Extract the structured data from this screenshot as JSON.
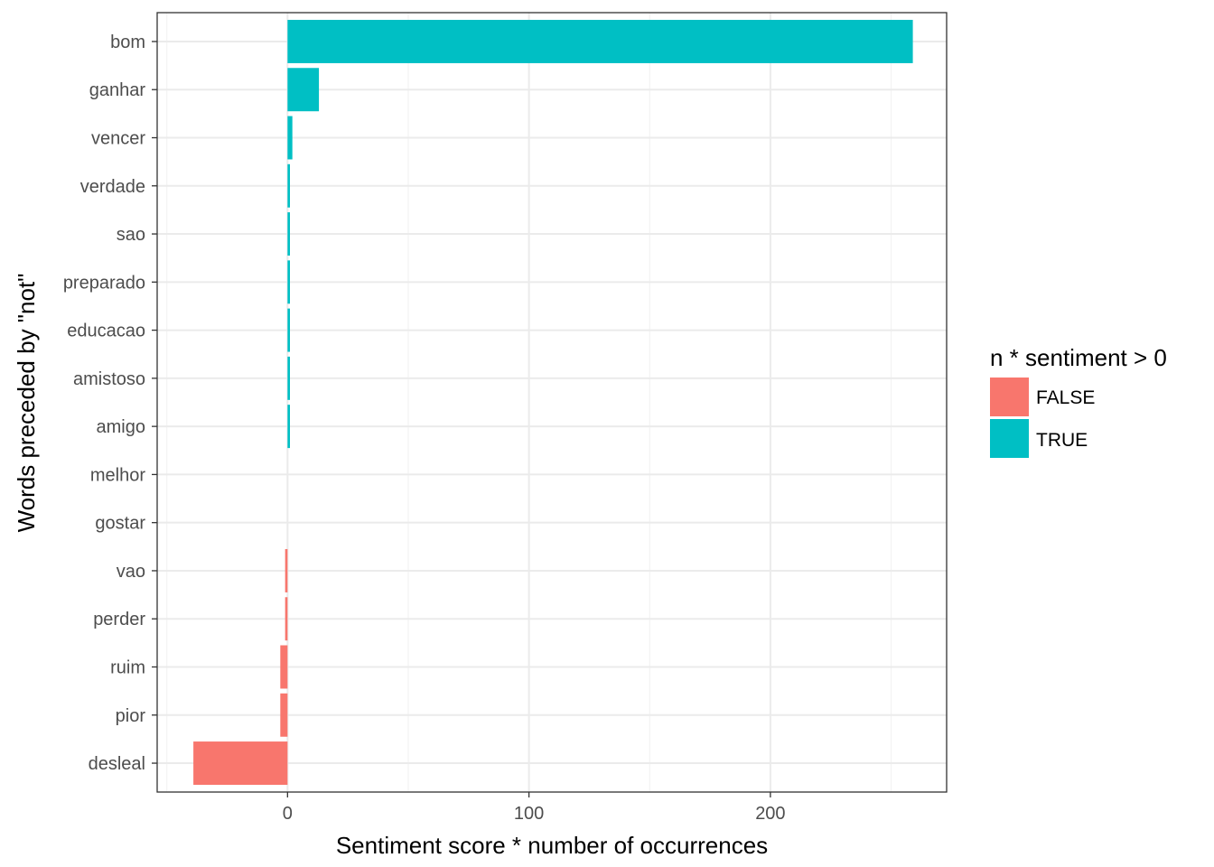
{
  "chart_data": {
    "type": "bar",
    "orientation": "horizontal",
    "ylabel": "Words preceded by \"not\"",
    "xlabel": "Sentiment score * number of occurrences",
    "xlim": [
      -54,
      273
    ],
    "xticks": [
      0,
      100,
      200
    ],
    "xtick_labels": [
      "0",
      "100",
      "200"
    ],
    "grid": true,
    "categories": [
      "bom",
      "ganhar",
      "vencer",
      "verdade",
      "sao",
      "preparado",
      "educacao",
      "amistoso",
      "amigo",
      "melhor",
      "gostar",
      "vao",
      "perder",
      "ruim",
      "pior",
      "desleal"
    ],
    "values": [
      259,
      13,
      2,
      1,
      1,
      1,
      1,
      1,
      1,
      0,
      0,
      -1,
      -1,
      -3,
      -3,
      -39
    ],
    "legend": {
      "title": "n * sentiment > 0",
      "position": "right",
      "entries": [
        {
          "label": "FALSE",
          "color": "#F8766D"
        },
        {
          "label": "TRUE",
          "color": "#00BFC4"
        }
      ]
    }
  }
}
